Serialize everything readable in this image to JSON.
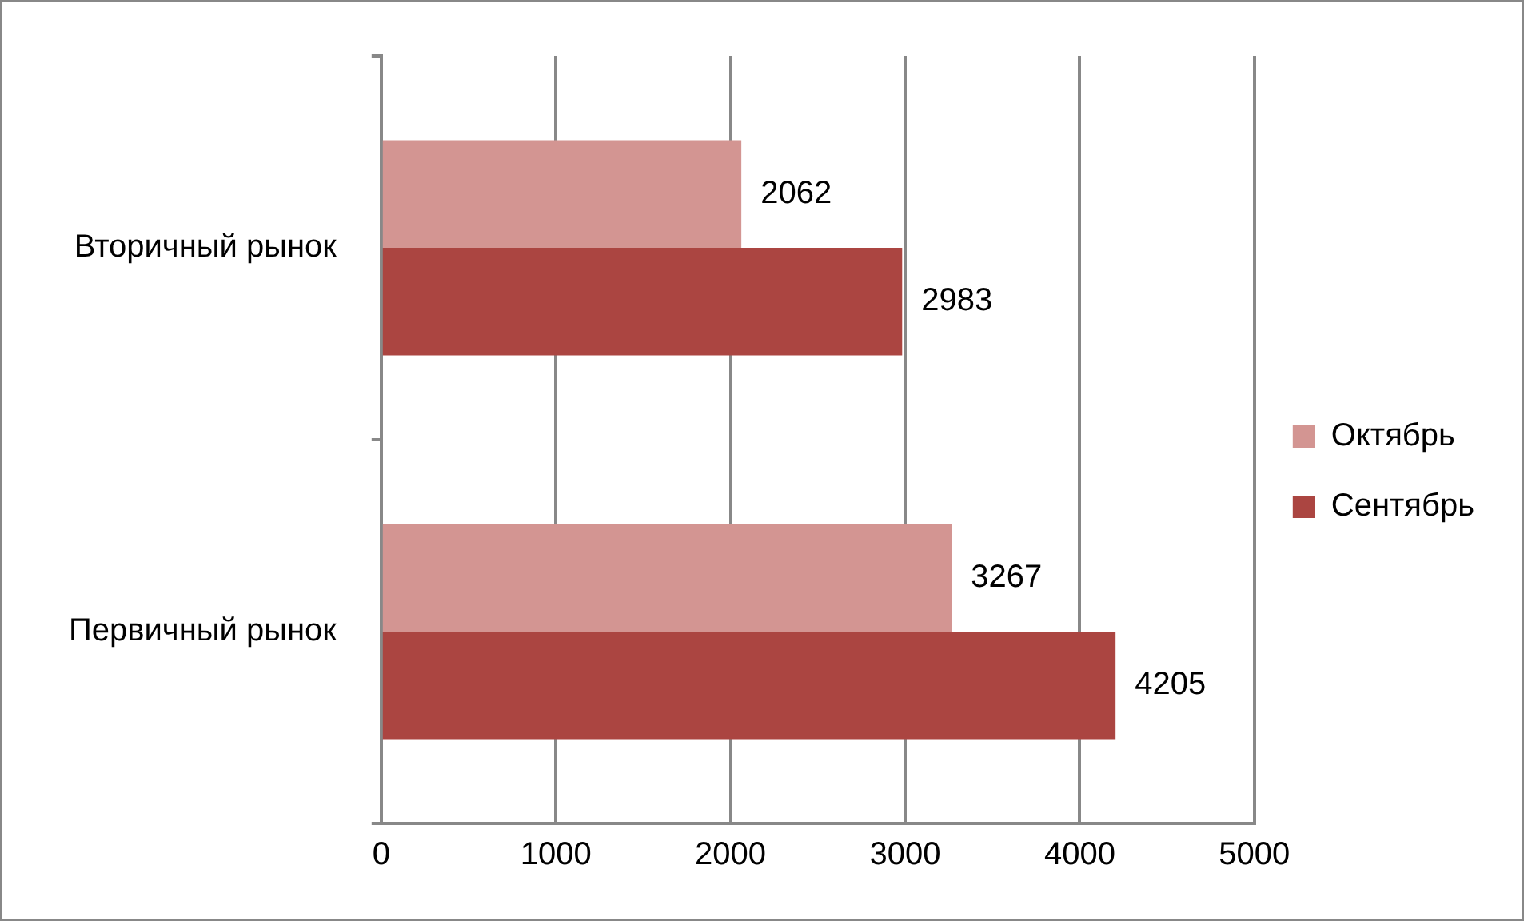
{
  "chart_data": {
    "type": "bar",
    "orientation": "horizontal",
    "categories": [
      "Вторичный рынок",
      "Первичный рынок"
    ],
    "series": [
      {
        "name": "Октябрь",
        "color": "#d39592",
        "values": [
          2062,
          3267
        ]
      },
      {
        "name": "Сентябрь",
        "color": "#ab4541",
        "values": [
          2983,
          4205
        ]
      }
    ],
    "xlim": [
      0,
      5000
    ],
    "xticks": [
      0,
      1000,
      2000,
      3000,
      4000,
      5000
    ],
    "grid": "x",
    "legend": "right",
    "data_labels": true
  }
}
